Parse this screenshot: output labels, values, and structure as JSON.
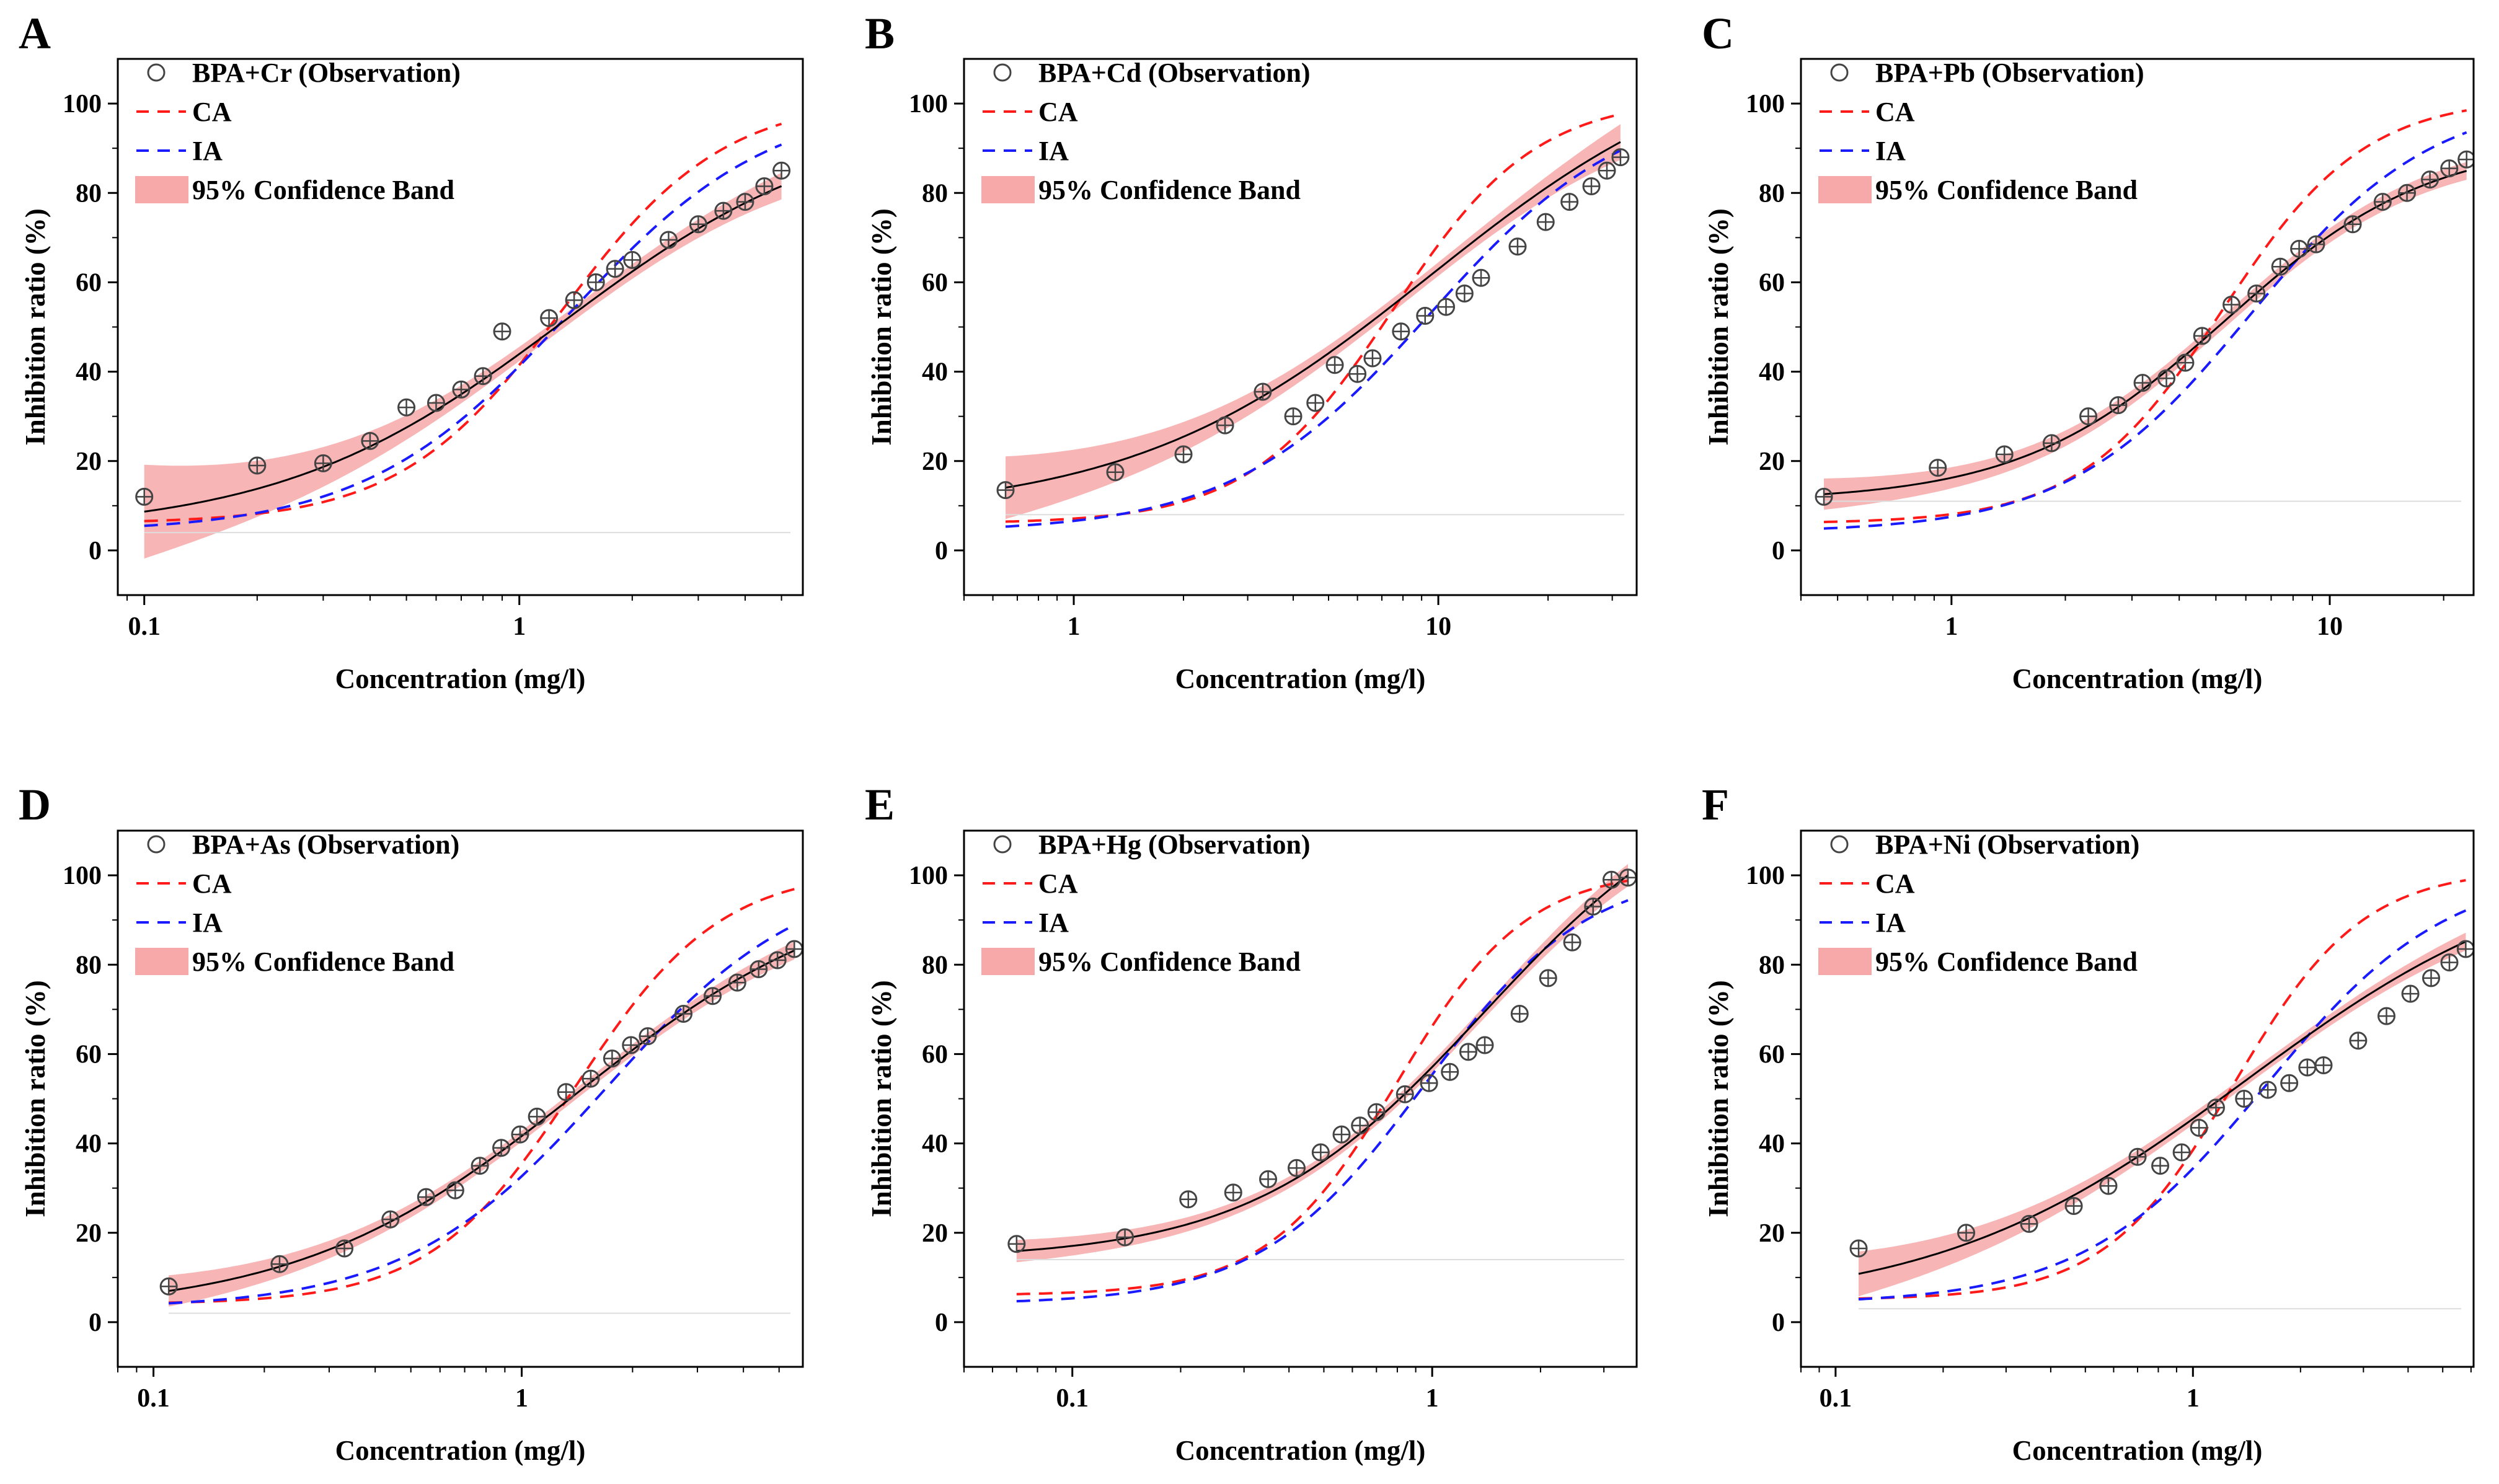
{
  "figure": {
    "y_axis_label": "Inhibition ratio (%)",
    "x_axis_label": "Concentration (mg/l)"
  },
  "chart_data": [
    {
      "panel": "A",
      "type": "scatter",
      "title": "BPA+Cr",
      "xlabel": "Concentration (mg/l)",
      "ylabel": "Inhibition ratio (%)",
      "xscale": "log",
      "xlim": [
        0.085,
        5.7
      ],
      "ylim": [
        -10,
        110
      ],
      "xticks": [
        {
          "v": 0.1,
          "label": "0.1"
        },
        {
          "v": 1,
          "label": "1"
        }
      ],
      "yticks": [
        0,
        20,
        40,
        60,
        80,
        100
      ],
      "legend": {
        "observation": "BPA+Cr (Observation)",
        "ca": "CA",
        "ia": "IA",
        "band": "95% Confidence Band"
      },
      "observations": {
        "x": [
          0.1,
          0.2,
          0.3,
          0.4,
          0.5,
          0.6,
          0.7,
          0.8,
          0.9,
          1.2,
          1.4,
          1.6,
          1.8,
          2.0,
          2.5,
          3.0,
          3.5,
          4.0,
          4.5,
          5.0
        ],
        "y": [
          12,
          19,
          19.5,
          24.5,
          32,
          33,
          36,
          39,
          49,
          52,
          56,
          60,
          63,
          65,
          69.5,
          73,
          76,
          78,
          81.5,
          85
        ]
      },
      "fit": {
        "bottom": 4,
        "top": 98,
        "ec50": 1.3,
        "slope": 1.15
      },
      "ci_width": {
        "center": 1.3,
        "min": 1.5,
        "low_end": 10.5,
        "high_end": 3
      },
      "ca": {
        "bottom": 6,
        "top": 101.5,
        "ec50": 1.3,
        "slope": 2.0
      },
      "ia": {
        "bottom": 4,
        "top": 101.5,
        "ec50": 1.35,
        "slope": 1.6
      }
    },
    {
      "panel": "B",
      "type": "scatter",
      "title": "BPA+Cd",
      "xlabel": "Concentration (mg/l)",
      "ylabel": "Inhibition ratio (%)",
      "xscale": "log",
      "xlim": [
        0.5,
        35
      ],
      "ylim": [
        -10,
        110
      ],
      "xticks": [
        {
          "v": 1,
          "label": "1"
        },
        {
          "v": 10,
          "label": "10"
        }
      ],
      "yticks": [
        0,
        20,
        40,
        60,
        80,
        100
      ],
      "legend": {
        "observation": "BPA+Cd (Observation)",
        "ca": "CA",
        "ia": "IA",
        "band": "95% Confidence Band"
      },
      "observations": {
        "x": [
          0.65,
          1.3,
          2.0,
          2.6,
          3.3,
          4.0,
          4.6,
          5.2,
          6.0,
          6.6,
          7.9,
          9.2,
          10.5,
          11.8,
          13.1,
          16.5,
          19.7,
          22.9,
          26.3,
          29,
          31.6
        ],
        "y": [
          13.5,
          17.5,
          21.5,
          28,
          35.5,
          30,
          33,
          41.5,
          39.5,
          43,
          49,
          52.5,
          54.5,
          57.5,
          61,
          68,
          73.5,
          78,
          81.5,
          85,
          88
        ]
      },
      "fit": {
        "bottom": 8,
        "top": 115,
        "ec50": 9.5,
        "slope": 1.05
      },
      "ci_width": {
        "center": 9,
        "min": 1.5,
        "low_end": 7,
        "high_end": 4
      },
      "ca": {
        "bottom": 6,
        "top": 101.5,
        "ec50": 7.5,
        "slope": 2.2
      },
      "ia": {
        "bottom": 4,
        "top": 102,
        "ec50": 9.5,
        "slope": 1.6
      }
    },
    {
      "panel": "C",
      "type": "scatter",
      "title": "BPA+Pb",
      "xlabel": "Concentration (mg/l)",
      "ylabel": "Inhibition ratio (%)",
      "xscale": "log",
      "xlim": [
        0.4,
        24
      ],
      "ylim": [
        -10,
        110
      ],
      "xticks": [
        {
          "v": 1,
          "label": "1"
        },
        {
          "v": 10,
          "label": "10"
        }
      ],
      "yticks": [
        0,
        20,
        40,
        60,
        80,
        100
      ],
      "legend": {
        "observation": "BPA+Pb (Observation)",
        "ca": "CA",
        "ia": "IA",
        "band": "95% Confidence Band"
      },
      "observations": {
        "x": [
          0.46,
          0.92,
          1.38,
          1.84,
          2.3,
          2.76,
          3.2,
          3.7,
          4.15,
          4.6,
          5.5,
          6.4,
          7.4,
          8.3,
          9.2,
          11.5,
          13.8,
          16,
          18.4,
          20.7,
          23
        ],
        "y": [
          12,
          18.5,
          21.5,
          24,
          30,
          32.5,
          37.5,
          38.5,
          42,
          48,
          55,
          57.5,
          63.5,
          67.5,
          68.5,
          73,
          78,
          80,
          83,
          85.5,
          87.5
        ]
      },
      "fit": {
        "bottom": 11,
        "top": 92,
        "ec50": 5.3,
        "slope": 1.6
      },
      "ci_width": {
        "center": 4.5,
        "min": 1.5,
        "low_end": 3.5,
        "high_end": 2
      },
      "ca": {
        "bottom": 6,
        "top": 101.5,
        "ec50": 5.2,
        "slope": 2.3
      },
      "ia": {
        "bottom": 4,
        "top": 102,
        "ec50": 6.2,
        "slope": 1.8
      }
    },
    {
      "panel": "D",
      "type": "scatter",
      "title": "BPA+As",
      "xlabel": "Concentration (mg/l)",
      "ylabel": "Inhibition ratio (%)",
      "xscale": "log",
      "xlim": [
        0.08,
        5.8
      ],
      "ylim": [
        -10,
        110
      ],
      "xticks": [
        {
          "v": 0.1,
          "label": "0.1"
        },
        {
          "v": 1,
          "label": "1"
        }
      ],
      "yticks": [
        0,
        20,
        40,
        60,
        80,
        100
      ],
      "legend": {
        "observation": "BPA+As (Observation)",
        "ca": "CA",
        "ia": "IA",
        "band": "95% Confidence Band"
      },
      "observations": {
        "x": [
          0.11,
          0.22,
          0.33,
          0.44,
          0.55,
          0.66,
          0.77,
          0.88,
          0.99,
          1.1,
          1.32,
          1.54,
          1.76,
          1.98,
          2.2,
          2.75,
          3.3,
          3.85,
          4.4,
          4.95,
          5.5
        ],
        "y": [
          8,
          13,
          16.5,
          23,
          28,
          29.5,
          35,
          39,
          42,
          46,
          51.5,
          54.5,
          59,
          62,
          64,
          69,
          73,
          76,
          79,
          81,
          83.5
        ]
      },
      "fit": {
        "bottom": 2,
        "top": 100,
        "ec50": 1.4,
        "slope": 1.15
      },
      "ci_width": {
        "center": 1.2,
        "min": 1.2,
        "low_end": 3.5,
        "high_end": 2
      },
      "ca": {
        "bottom": 4,
        "top": 101.5,
        "ec50": 1.4,
        "slope": 2.2
      },
      "ia": {
        "bottom": 3,
        "top": 102,
        "ec50": 1.7,
        "slope": 1.6
      }
    },
    {
      "panel": "E",
      "type": "scatter",
      "title": "BPA+Hg",
      "xlabel": "Concentration (mg/l)",
      "ylabel": "Inhibition ratio (%)",
      "xscale": "log",
      "xlim": [
        0.05,
        3.7
      ],
      "ylim": [
        -10,
        110
      ],
      "xticks": [
        {
          "v": 0.1,
          "label": "0.1"
        },
        {
          "v": 1,
          "label": "1"
        }
      ],
      "yticks": [
        0,
        20,
        40,
        60,
        80,
        100
      ],
      "legend": {
        "observation": "BPA+Hg (Observation)",
        "ca": "CA",
        "ia": "IA",
        "band": "95% Confidence Band"
      },
      "observations": {
        "x": [
          0.07,
          0.14,
          0.21,
          0.28,
          0.35,
          0.42,
          0.49,
          0.56,
          0.63,
          0.7,
          0.84,
          0.98,
          1.12,
          1.26,
          1.4,
          1.75,
          2.1,
          2.45,
          2.8,
          3.15,
          3.5
        ],
        "y": [
          17.5,
          19,
          27.5,
          29,
          32,
          34.5,
          38,
          42,
          44,
          47,
          51,
          53.5,
          56,
          60.5,
          62,
          69,
          77,
          85,
          93,
          99,
          99.5
        ]
      },
      "fit": {
        "bottom": 14,
        "top": 125,
        "ec50": 1.4,
        "slope": 1.35
      },
      "ci_width": {
        "center": 0.8,
        "min": 1.2,
        "low_end": 2.5,
        "high_end": 2.5
      },
      "ca": {
        "bottom": 6,
        "top": 101.5,
        "ec50": 0.8,
        "slope": 2.4
      },
      "ia": {
        "bottom": 4,
        "top": 102,
        "ec50": 0.95,
        "slope": 1.9
      }
    },
    {
      "panel": "F",
      "type": "scatter",
      "title": "BPA+Ni",
      "xlabel": "Concentration (mg/l)",
      "ylabel": "Inhibition ratio (%)",
      "xscale": "log",
      "xlim": [
        0.08,
        6.1
      ],
      "ylim": [
        -10,
        110
      ],
      "xticks": [
        {
          "v": 0.1,
          "label": "0.1"
        },
        {
          "v": 1,
          "label": "1"
        }
      ],
      "yticks": [
        0,
        20,
        40,
        60,
        80,
        100
      ],
      "legend": {
        "observation": "BPA+Ni (Observation)",
        "ca": "CA",
        "ia": "IA",
        "band": "95% Confidence Band"
      },
      "observations": {
        "x": [
          0.116,
          0.232,
          0.348,
          0.464,
          0.58,
          0.7,
          0.81,
          0.93,
          1.04,
          1.16,
          1.39,
          1.62,
          1.86,
          2.09,
          2.32,
          2.9,
          3.48,
          4.06,
          4.64,
          5.22,
          5.8
        ],
        "y": [
          16.5,
          20,
          22,
          26,
          30.5,
          37,
          35,
          38,
          43.5,
          48,
          50,
          52,
          53.5,
          57,
          57.5,
          63,
          68.5,
          73.5,
          77,
          80.5,
          83.5
        ]
      },
      "fit": {
        "bottom": 3,
        "top": 105,
        "ec50": 1.4,
        "slope": 1.0
      },
      "ci_width": {
        "center": 1.4,
        "min": 1.2,
        "low_end": 5,
        "high_end": 2
      },
      "ca": {
        "bottom": 5,
        "top": 101.5,
        "ec50": 1.3,
        "slope": 2.4
      },
      "ia": {
        "bottom": 4,
        "top": 102,
        "ec50": 1.6,
        "slope": 1.7
      }
    }
  ]
}
